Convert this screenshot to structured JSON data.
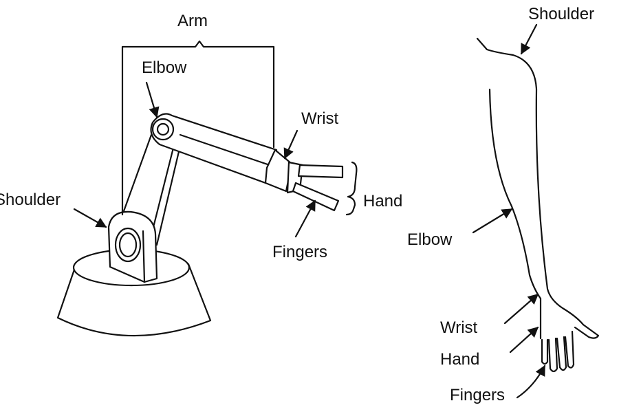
{
  "robot": {
    "arm": "Arm",
    "elbow": "Elbow",
    "wrist": "Wrist",
    "shoulder": "Shoulder",
    "hand": "Hand",
    "fingers": "Fingers"
  },
  "human": {
    "shoulder": "Shoulder",
    "elbow": "Elbow",
    "wrist": "Wrist",
    "hand": "Hand",
    "fingers": "Fingers"
  }
}
